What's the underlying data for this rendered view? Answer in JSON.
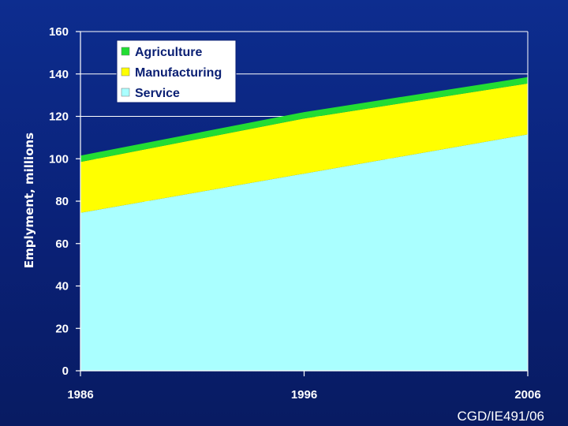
{
  "chart_data": {
    "type": "area",
    "stacked": true,
    "title": "",
    "xlabel": "",
    "ylabel": "Emplyment, millions",
    "x": [
      1986,
      1996,
      2006
    ],
    "x_tick_labels": [
      "1986",
      "1996",
      "2006"
    ],
    "ylim": [
      0,
      160
    ],
    "y_ticks": [
      0,
      20,
      40,
      60,
      80,
      100,
      120,
      140,
      160
    ],
    "grid": "horizontal",
    "legend_position": "top-center",
    "series": [
      {
        "name": "Service",
        "color": "#aaffff",
        "values": [
          74.5,
          93,
          111.5
        ]
      },
      {
        "name": "Manufacturing",
        "color": "#ffff00",
        "values": [
          24,
          26,
          24
        ]
      },
      {
        "name": "Agriculture",
        "color": "#22dd33",
        "values": [
          3,
          3,
          3
        ]
      }
    ]
  },
  "footer": {
    "text": "CGD/IE491/06"
  }
}
